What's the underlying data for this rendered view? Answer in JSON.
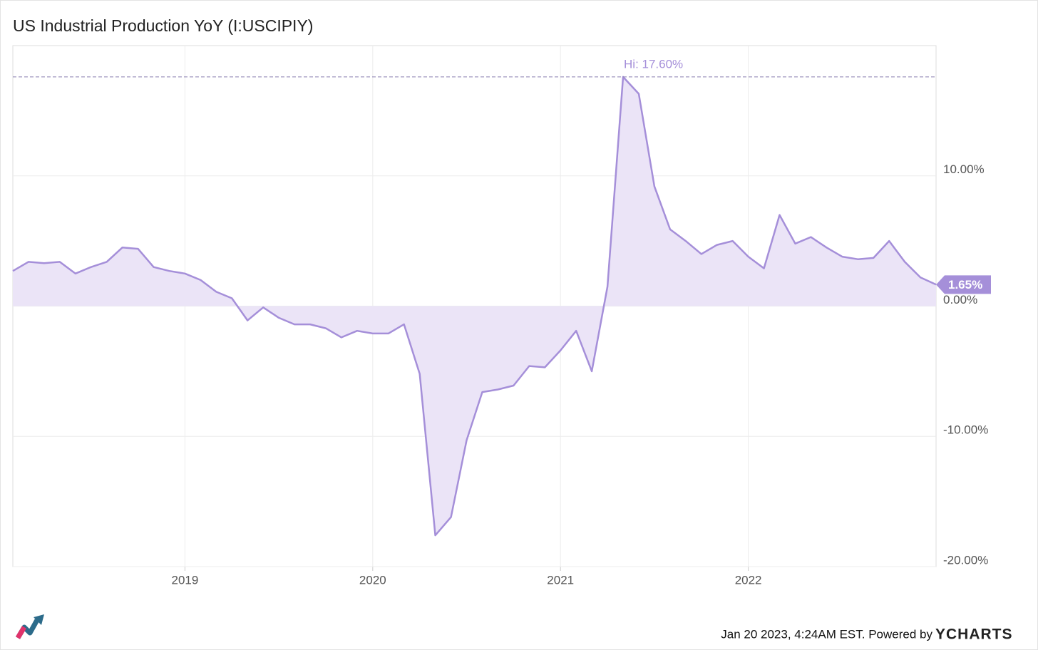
{
  "chart_data": {
    "type": "area",
    "title": "US Industrial Production YoY (I:USCIPIY)",
    "color": "#a58fd9",
    "fill": "#ebe4f7",
    "grid": true,
    "x": [
      "2018-02",
      "2018-03",
      "2018-04",
      "2018-05",
      "2018-06",
      "2018-07",
      "2018-08",
      "2018-09",
      "2018-10",
      "2018-11",
      "2018-12",
      "2019-01",
      "2019-02",
      "2019-03",
      "2019-04",
      "2019-05",
      "2019-06",
      "2019-07",
      "2019-08",
      "2019-09",
      "2019-10",
      "2019-11",
      "2019-12",
      "2020-01",
      "2020-02",
      "2020-03",
      "2020-04",
      "2020-05",
      "2020-06",
      "2020-07",
      "2020-08",
      "2020-09",
      "2020-10",
      "2020-11",
      "2020-12",
      "2021-01",
      "2021-02",
      "2021-03",
      "2021-04",
      "2021-05",
      "2021-06",
      "2021-07",
      "2021-08",
      "2021-09",
      "2021-10",
      "2021-11",
      "2021-12",
      "2022-01",
      "2022-02",
      "2022-03",
      "2022-04",
      "2022-05",
      "2022-06",
      "2022-07",
      "2022-08",
      "2022-09",
      "2022-10",
      "2022-11",
      "2022-12",
      "2023-01"
    ],
    "values": [
      2.7,
      3.4,
      3.3,
      3.4,
      2.5,
      3.0,
      3.4,
      4.5,
      4.4,
      3.0,
      2.7,
      2.5,
      2.0,
      1.1,
      0.6,
      -1.1,
      -0.1,
      -0.9,
      -1.4,
      -1.4,
      -1.7,
      -2.4,
      -1.9,
      -2.1,
      -2.1,
      -1.4,
      -5.2,
      -17.6,
      -16.2,
      -10.3,
      -6.6,
      -6.4,
      -6.1,
      -4.6,
      -4.7,
      -3.4,
      -1.9,
      -5.0,
      1.5,
      17.6,
      16.3,
      9.2,
      5.9,
      5.0,
      4.0,
      4.7,
      5.0,
      3.8,
      2.9,
      7.0,
      4.8,
      5.3,
      4.5,
      3.8,
      3.6,
      3.7,
      5.0,
      3.4,
      2.2,
      1.65
    ],
    "xlim": [
      "2018-02",
      "2023-01"
    ],
    "xticks": [
      2019,
      2020,
      2021,
      2022
    ],
    "ylim": [
      -20,
      20
    ],
    "yticks": [
      {
        "value": 10,
        "label": "10.00%"
      },
      {
        "value": 0,
        "label": "0.00%"
      },
      {
        "value": -10,
        "label": "-10.00%"
      },
      {
        "value": -20,
        "label": "-20.00%"
      }
    ],
    "annotations": [
      {
        "text": "Hi: 17.60%",
        "value": 17.6
      },
      {
        "text": "1.65%",
        "value": 1.65
      }
    ],
    "footer": "Jan 20 2023, 4:24AM EST. Powered by",
    "brand": "YCHARTS"
  }
}
